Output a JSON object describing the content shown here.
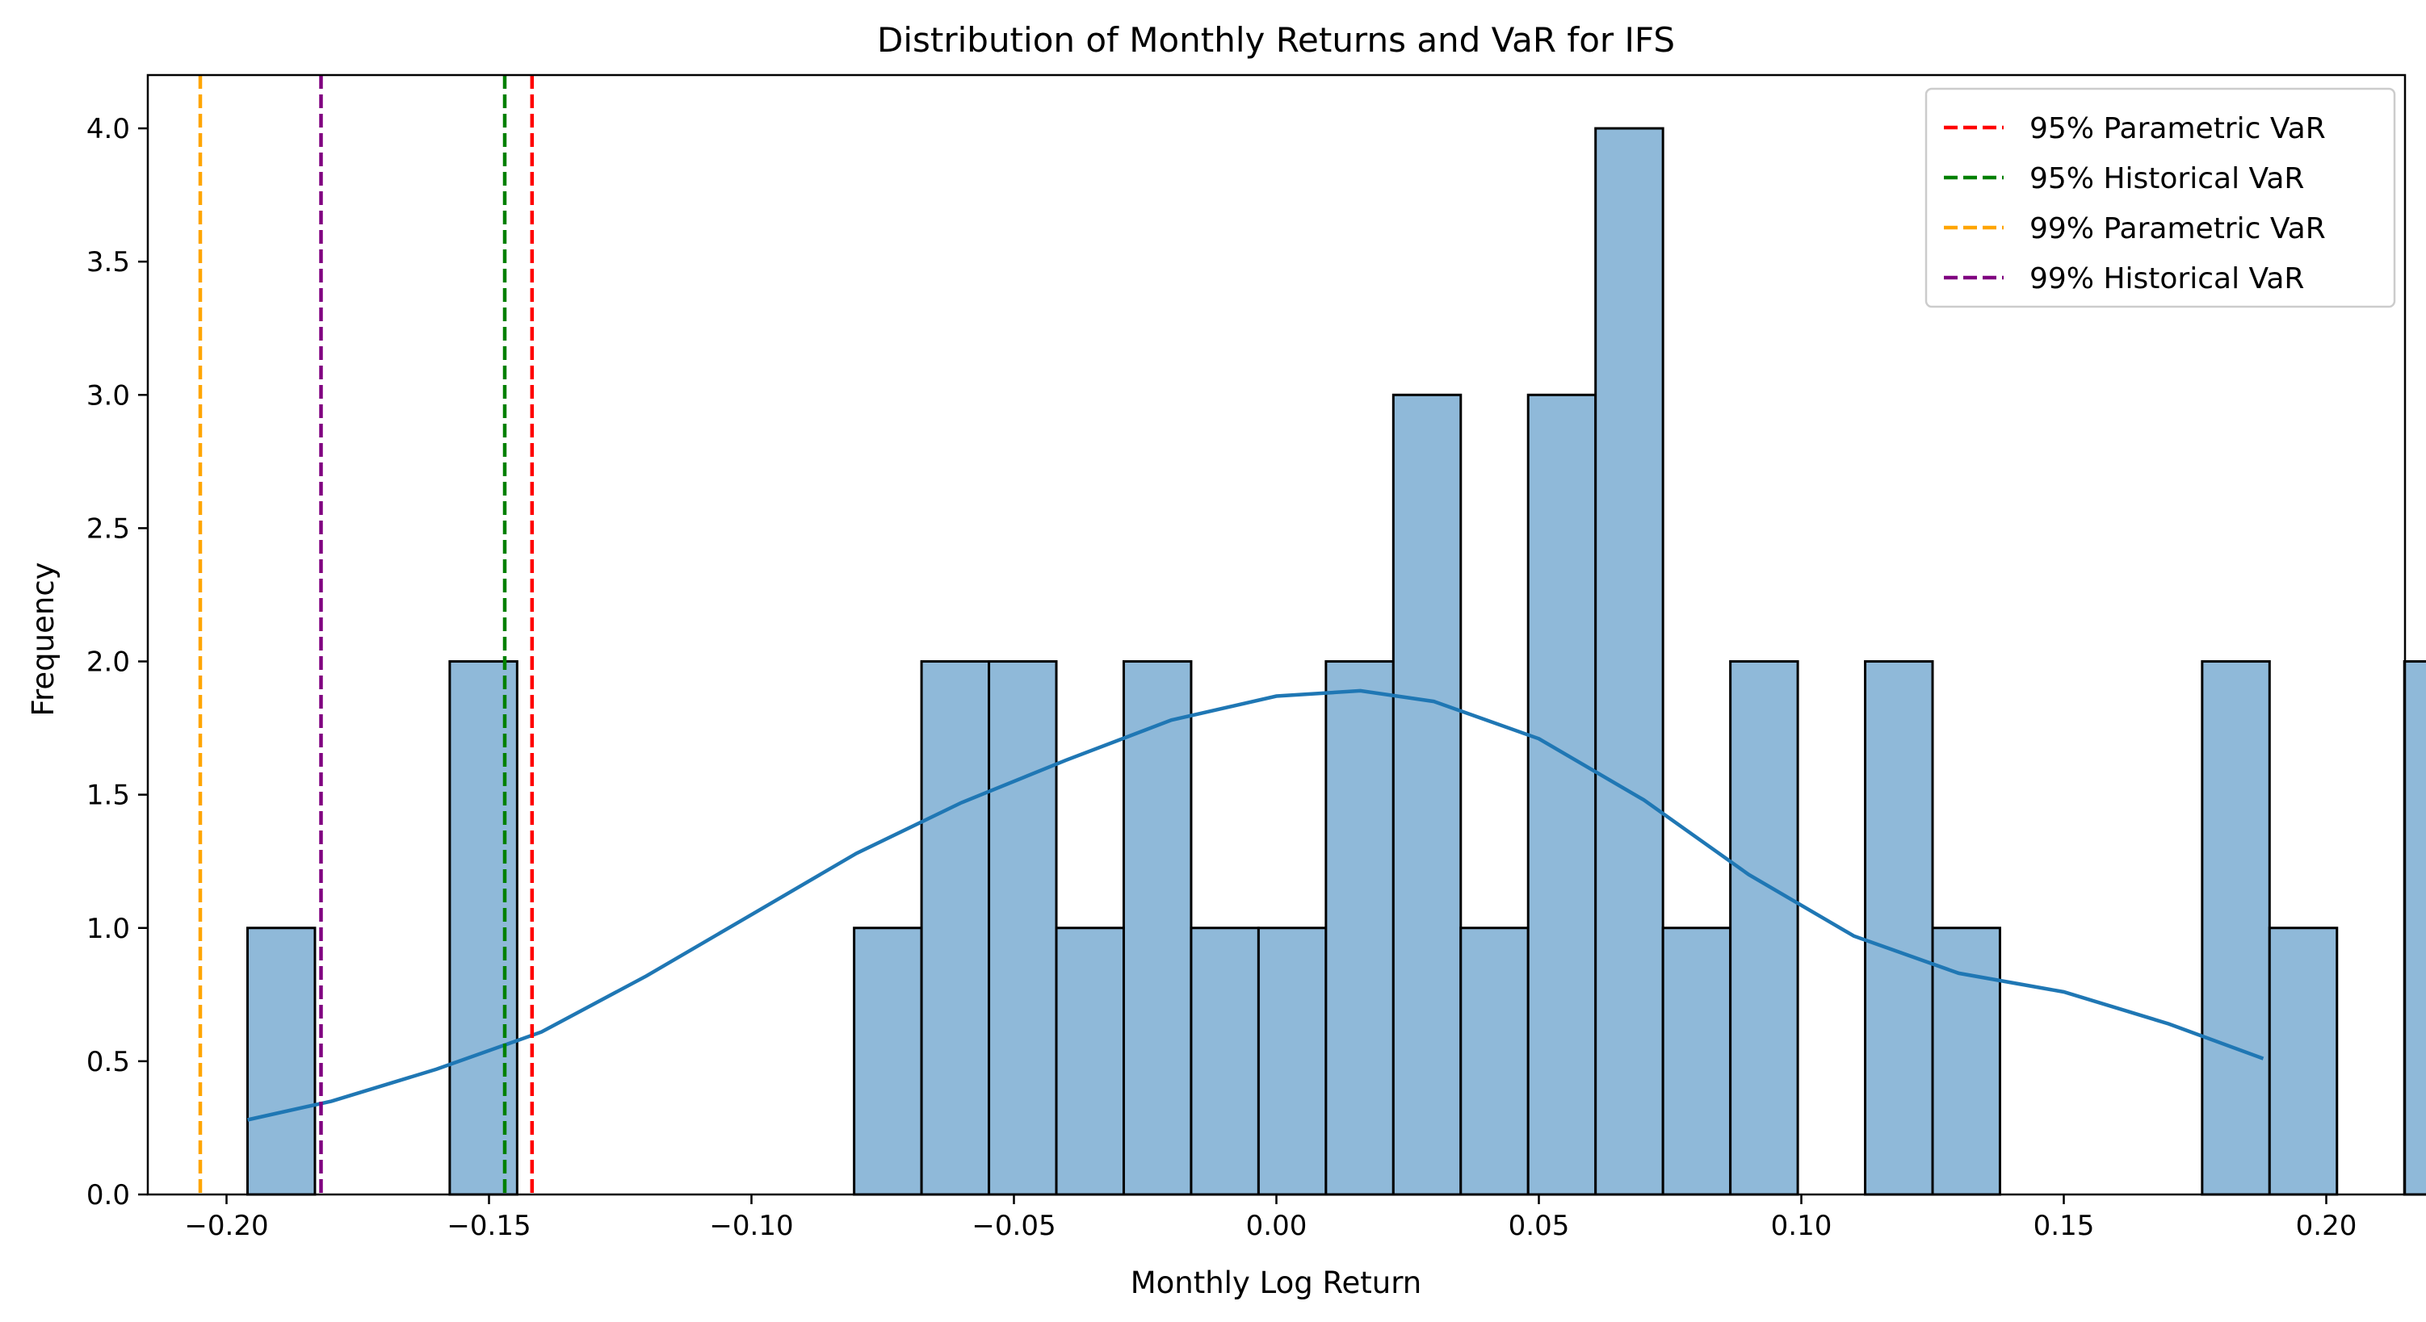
{
  "chart_data": {
    "type": "bar",
    "title": "Distribution of Monthly Returns and VaR for IFS",
    "xlabel": "Monthly Log Return",
    "ylabel": "Frequency",
    "xlim": [
      -0.215,
      0.215
    ],
    "ylim": [
      0,
      4.2
    ],
    "xticks": [
      -0.2,
      -0.15,
      -0.1,
      -0.05,
      0.0,
      0.05,
      0.1,
      0.15,
      0.2
    ],
    "xtick_labels": [
      "−0.20",
      "−0.15",
      "−0.10",
      "−0.05",
      "0.00",
      "0.05",
      "0.10",
      "0.15",
      "0.20"
    ],
    "yticks": [
      0.0,
      0.5,
      1.0,
      1.5,
      2.0,
      2.5,
      3.0,
      3.5,
      4.0
    ],
    "ytick_labels": [
      "0.0",
      "0.5",
      "1.0",
      "1.5",
      "2.0",
      "2.5",
      "3.0",
      "3.5",
      "4.0"
    ],
    "bins": {
      "start": -0.196,
      "width": 0.01284,
      "counts": [
        1,
        0,
        0,
        2,
        0,
        0,
        0,
        0,
        0,
        1,
        2,
        2,
        1,
        2,
        1,
        1,
        2,
        3,
        1,
        3,
        4,
        1,
        2,
        0,
        2,
        1,
        0,
        0,
        0,
        2,
        1,
        0,
        2
      ],
      "color": "#8fb9d9",
      "edge_color": "#000000"
    },
    "kde": {
      "color": "#1f77b4",
      "x": [
        -0.196,
        -0.18,
        -0.16,
        -0.14,
        -0.12,
        -0.1,
        -0.08,
        -0.06,
        -0.04,
        -0.02,
        0.0,
        0.016,
        0.03,
        0.05,
        0.07,
        0.09,
        0.11,
        0.13,
        0.15,
        0.17,
        0.188
      ],
      "y": [
        0.28,
        0.35,
        0.47,
        0.61,
        0.82,
        1.05,
        1.28,
        1.47,
        1.63,
        1.78,
        1.87,
        1.89,
        1.85,
        1.71,
        1.48,
        1.2,
        0.97,
        0.83,
        0.76,
        0.64,
        0.51
      ]
    },
    "vlines": [
      {
        "name": "95% Parametric VaR",
        "x": -0.1418,
        "color": "#ff0000"
      },
      {
        "name": "95% Historical VaR",
        "x": -0.147,
        "color": "#008000"
      },
      {
        "name": "99% Parametric VaR",
        "x": -0.205,
        "color": "#ffa500"
      },
      {
        "name": "99% Historical VaR",
        "x": -0.182,
        "color": "#800080"
      }
    ],
    "legend_position": "top-right",
    "grid": false
  }
}
